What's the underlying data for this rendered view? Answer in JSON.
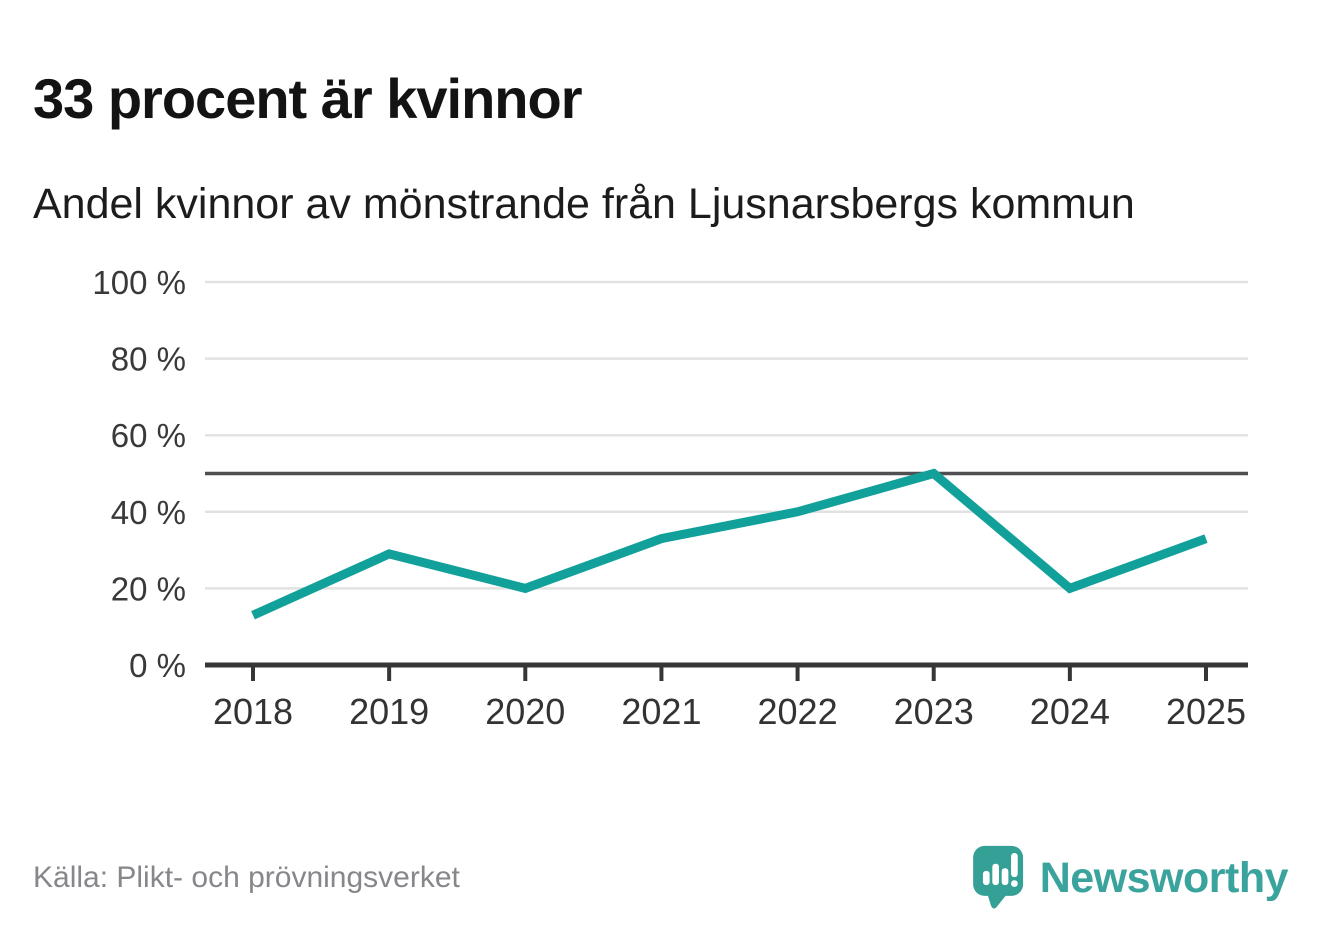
{
  "header": {
    "title": "33 procent är kvinnor",
    "subtitle": "Andel kvinnor av mönstrande från Ljusnarsbergs kommun"
  },
  "chart_data": {
    "type": "line",
    "title": "33 procent är kvinnor",
    "subtitle": "Andel kvinnor av mönstrande från Ljusnarsbergs kommun",
    "categories": [
      "2018",
      "2019",
      "2020",
      "2021",
      "2022",
      "2023",
      "2024",
      "2025"
    ],
    "series": [
      {
        "name": "Andel kvinnor av mönstrande",
        "values": [
          13,
          29,
          20,
          33,
          40,
          50,
          20,
          33
        ]
      }
    ],
    "unit": "%",
    "xlabel": "",
    "ylabel": "",
    "ylim": [
      0,
      100
    ],
    "yticks": [
      {
        "value": 0,
        "label": "0 %"
      },
      {
        "value": 20,
        "label": "20 %"
      },
      {
        "value": 40,
        "label": "40 %"
      },
      {
        "value": 60,
        "label": "60 %"
      },
      {
        "value": 80,
        "label": "80 %"
      },
      {
        "value": 100,
        "label": "100 %"
      }
    ],
    "reference_line": {
      "value": 50
    },
    "grid": "horizontal",
    "legend": "none"
  },
  "footer": {
    "source": "Källa: Plikt- och prövningsverket",
    "brand_name": "Newsworthy"
  },
  "colors": {
    "accent": "#12a19a",
    "reference_line": "#4f4f52",
    "grid_line": "#e2e2e2",
    "axis": "#363636",
    "brand_teal": "#35a096",
    "brand_text": "#3ba39d"
  }
}
